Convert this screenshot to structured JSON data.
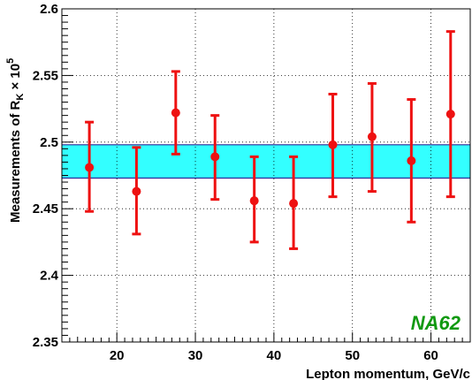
{
  "chart_data": {
    "type": "scatter",
    "xlabel": "Lepton momentum, GeV/c",
    "ylabel_parts": {
      "base": "Measurements of R",
      "sub": "K",
      "times": " × 10",
      "sup": "5"
    },
    "xlim": [
      13,
      65
    ],
    "ylim": [
      2.35,
      2.6
    ],
    "xticks": [
      20,
      30,
      40,
      50,
      60
    ],
    "yticks": [
      2.35,
      2.4,
      2.45,
      2.5,
      2.55,
      2.6
    ],
    "ytick_labels": [
      "2.35",
      "2.4",
      "2.45",
      "2.5",
      "2.55",
      "2.6"
    ],
    "grid": true,
    "band": {
      "low": 2.473,
      "high": 2.498,
      "color": "#33ffff",
      "edge_color": "#2a2a99"
    },
    "series": [
      {
        "color": "#ee1111",
        "points": [
          {
            "x": 16.5,
            "y": 2.481,
            "lo": 2.448,
            "hi": 2.515
          },
          {
            "x": 22.5,
            "y": 2.463,
            "lo": 2.431,
            "hi": 2.496
          },
          {
            "x": 27.5,
            "y": 2.522,
            "lo": 2.491,
            "hi": 2.553
          },
          {
            "x": 32.5,
            "y": 2.489,
            "lo": 2.457,
            "hi": 2.52
          },
          {
            "x": 37.5,
            "y": 2.456,
            "lo": 2.425,
            "hi": 2.489
          },
          {
            "x": 42.5,
            "y": 2.454,
            "lo": 2.42,
            "hi": 2.489
          },
          {
            "x": 47.5,
            "y": 2.498,
            "lo": 2.459,
            "hi": 2.536
          },
          {
            "x": 52.5,
            "y": 2.504,
            "lo": 2.463,
            "hi": 2.544
          },
          {
            "x": 57.5,
            "y": 2.486,
            "lo": 2.44,
            "hi": 2.532
          },
          {
            "x": 62.5,
            "y": 2.521,
            "lo": 2.459,
            "hi": 2.583
          }
        ]
      }
    ],
    "annotation": {
      "text": "NA62",
      "color": "#119911"
    }
  }
}
